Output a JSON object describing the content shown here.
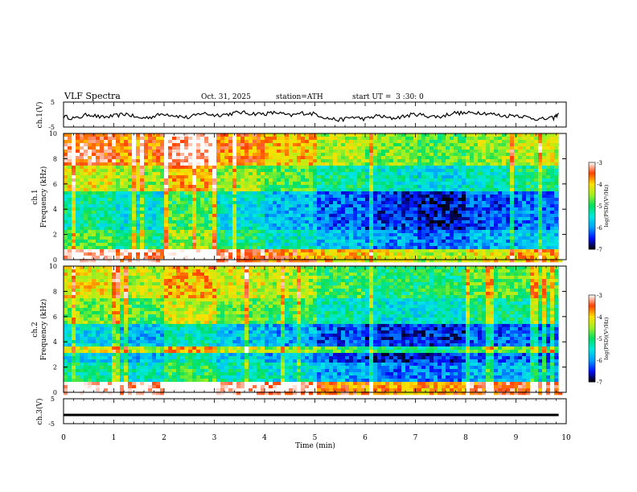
{
  "header": {
    "title": "VLF Spectra",
    "date": "Oct. 31, 2025",
    "station": "station=ATH",
    "start": "start UT =  3 :30: 0"
  },
  "chart_data": [
    {
      "type": "line",
      "name": "ch1-waveform",
      "ylabel": "ch.1(V)",
      "ylim": [
        -5,
        5
      ],
      "yticks": [
        "5",
        "-5"
      ],
      "xlim": [
        0,
        10
      ],
      "series": [
        {
          "name": "ch.1",
          "x": [
            0,
            0.25,
            0.5,
            0.75,
            1,
            1.25,
            1.5,
            1.75,
            2,
            2.25,
            2.5,
            2.75,
            3,
            3.25,
            3.5,
            3.75,
            4,
            4.25,
            4.5,
            4.75,
            5,
            5.25,
            5.5,
            5.75,
            6,
            6.25,
            6.5,
            6.75,
            7,
            7.25,
            7.5,
            7.75,
            8,
            8.25,
            8.5,
            8.75,
            9,
            9.25,
            9.5,
            9.75,
            9.85
          ],
          "values": [
            -0.8,
            -1.6,
            0.2,
            -1.2,
            -0.6,
            0.3,
            -1.5,
            -0.9,
            0.4,
            -0.5,
            -1.3,
            0.6,
            -0.2,
            0.1,
            0.9,
            0.4,
            0.3,
            0.8,
            -0.5,
            0.6,
            0.3,
            -1.5,
            -2.2,
            -1.0,
            -1.8,
            -0.4,
            -1.6,
            -0.8,
            0.2,
            -0.6,
            -0.9,
            0.7,
            0.5,
            0.9,
            0.3,
            -0.6,
            -0.2,
            -1.2,
            -1.9,
            -1.4,
            0.6
          ]
        }
      ]
    },
    {
      "type": "heatmap",
      "name": "ch1-spectrogram",
      "ylabel": "ch.1\nFrequency (kHz)",
      "ylim": [
        0,
        10
      ],
      "yticks": [
        "0",
        "2",
        "4",
        "6",
        "8",
        "10"
      ],
      "xlim": [
        0,
        10
      ],
      "colorbar": {
        "label": "log(PSD)(V²/Hz)",
        "range": [
          -7,
          -3
        ],
        "ticks": [
          "-3",
          "-4",
          "-5",
          "-6",
          "-7"
        ]
      },
      "series": [
        {
          "name": "band-profile",
          "x": [
            0.5,
            1.5,
            2.5,
            3.5,
            4.5,
            5.5,
            6.5,
            7.5,
            8.5,
            9.5
          ],
          "values": [
            -4.3,
            -4.6,
            -4.0,
            -4.6,
            -4.9,
            -5.3,
            -5.5,
            -5.7,
            -5.4,
            -5.2
          ]
        }
      ]
    },
    {
      "type": "heatmap",
      "name": "ch2-spectrogram",
      "ylabel": "ch.2\nFrequency (kHz)",
      "ylim": [
        0,
        10
      ],
      "yticks": [
        "0",
        "2",
        "4",
        "6",
        "8",
        "10"
      ],
      "xlim": [
        0,
        10
      ],
      "colorbar": {
        "label": "log(PSD)(V²/Hz)",
        "range": [
          -7,
          -3
        ],
        "ticks": [
          "-3",
          "-4",
          "-5",
          "-6",
          "-7"
        ]
      },
      "series": [
        {
          "name": "band-profile",
          "x": [
            0.5,
            1.5,
            2.5,
            3.5,
            4.5,
            5.5,
            6.5,
            7.5,
            8.5,
            9.5
          ],
          "values": [
            -4.7,
            -4.9,
            -4.4,
            -4.8,
            -5.0,
            -5.4,
            -5.6,
            -5.6,
            -5.3,
            -5.3
          ]
        }
      ]
    },
    {
      "type": "line",
      "name": "ch3-waveform",
      "ylabel": "ch.3(V)",
      "ylim": [
        -5,
        5
      ],
      "yticks": [
        "5",
        "-5"
      ],
      "xlim": [
        0,
        10
      ],
      "series": [
        {
          "name": "ch.3",
          "x": [
            0,
            9.85
          ],
          "values": [
            -1.5,
            -1.5
          ]
        }
      ]
    }
  ],
  "xaxis": {
    "label": "Time (min)",
    "ticks": [
      "0",
      "1",
      "2",
      "3",
      "4",
      "5",
      "6",
      "7",
      "8",
      "9",
      "10"
    ]
  },
  "colors": {
    "colormap": [
      "#000000",
      "#0010ff",
      "#00a0ff",
      "#00e8e0",
      "#00e060",
      "#a0f020",
      "#ffe000",
      "#ff4000",
      "#ffffff"
    ]
  }
}
